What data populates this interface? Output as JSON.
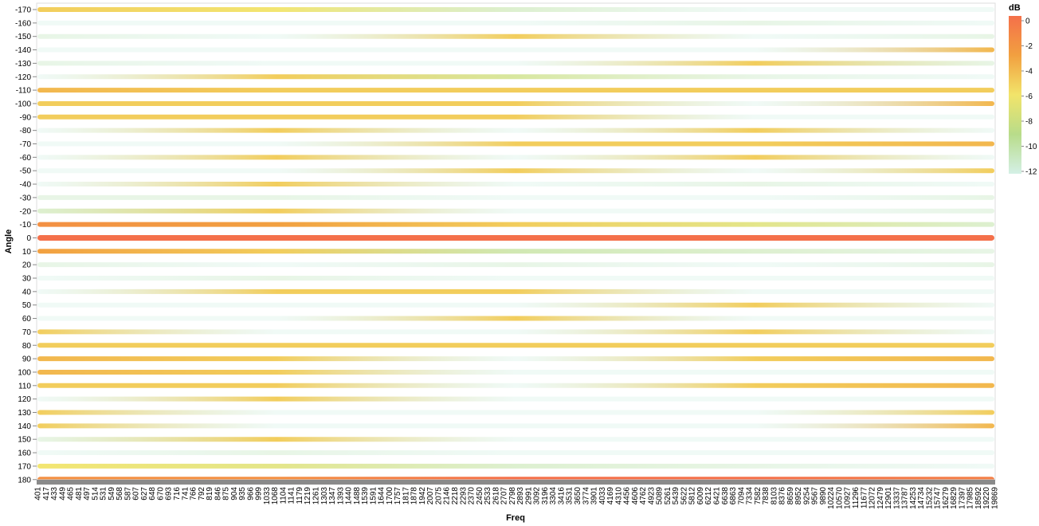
{
  "chart_data": {
    "type": "heatmap",
    "title": "",
    "xlabel": "Freq",
    "ylabel": "Angle",
    "x_tick_labels": [
      "401",
      "417",
      "433",
      "449",
      "465",
      "481",
      "497",
      "514",
      "531",
      "549",
      "568",
      "587",
      "607",
      "627",
      "648",
      "670",
      "693",
      "716",
      "741",
      "766",
      "792",
      "819",
      "846",
      "875",
      "904",
      "935",
      "966",
      "999",
      "1033",
      "1068",
      "1104",
      "1141",
      "1179",
      "1219",
      "1261",
      "1303",
      "1347",
      "1393",
      "1440",
      "1488",
      "1539",
      "1591",
      "1644",
      "1700",
      "1757",
      "1817",
      "1878",
      "1942",
      "2007",
      "2075",
      "2146",
      "2218",
      "2293",
      "2370",
      "2450",
      "2533",
      "2618",
      "2707",
      "2798",
      "2893",
      "2991",
      "3092",
      "3196",
      "3304",
      "3416",
      "3531",
      "3650",
      "3774",
      "3901",
      "4033",
      "4169",
      "4310",
      "4456",
      "4606",
      "4762",
      "4923",
      "5089",
      "5261",
      "5439",
      "5622",
      "5812",
      "6009",
      "6212",
      "6421",
      "6638",
      "6863",
      "7094",
      "7334",
      "7582",
      "7838",
      "8103",
      "8376",
      "8659",
      "8952",
      "9254",
      "9567",
      "9890",
      "10224",
      "10570",
      "10927",
      "11296",
      "11677",
      "12072",
      "12479",
      "12901",
      "13337",
      "13787",
      "14253",
      "14734",
      "15232",
      "15747",
      "16279",
      "16829",
      "17397",
      "17985",
      "18592",
      "19220",
      "19869"
    ],
    "angles": [
      -170,
      -160,
      -150,
      -140,
      -130,
      -120,
      -110,
      -100,
      -90,
      -80,
      -70,
      -60,
      -50,
      -40,
      -30,
      -20,
      -10,
      0,
      10,
      20,
      30,
      40,
      50,
      60,
      70,
      80,
      90,
      100,
      110,
      120,
      130,
      140,
      150,
      160,
      170,
      180
    ],
    "rows": [
      {
        "angle": -170,
        "db": [
          -5,
          -6,
          -10,
          -12,
          -12
        ]
      },
      {
        "angle": -160,
        "db": [
          -12,
          -12,
          -12,
          -11,
          -12
        ]
      },
      {
        "angle": -150,
        "db": [
          -11,
          -12,
          -5,
          -12,
          -11
        ]
      },
      {
        "angle": -140,
        "db": [
          -12,
          -12,
          -12,
          -12,
          -4
        ]
      },
      {
        "angle": -130,
        "db": [
          -11,
          -12,
          -12,
          -5,
          -11
        ]
      },
      {
        "angle": -120,
        "db": [
          -12,
          -5,
          -8,
          -11,
          -12
        ]
      },
      {
        "angle": -110,
        "db": [
          -4,
          -5,
          -5,
          -5,
          -5
        ]
      },
      {
        "angle": -100,
        "db": [
          -5,
          -5,
          -5,
          -12,
          -4
        ]
      },
      {
        "angle": -90,
        "db": [
          -5,
          -5,
          -5,
          -12,
          -12
        ]
      },
      {
        "angle": -80,
        "db": [
          -12,
          -5,
          -12,
          -5,
          -12
        ]
      },
      {
        "angle": -70,
        "db": [
          -12,
          -12,
          -5,
          -5,
          -4
        ]
      },
      {
        "angle": -60,
        "db": [
          -12,
          -5,
          -12,
          -5,
          -12
        ]
      },
      {
        "angle": -50,
        "db": [
          -12,
          -12,
          -5,
          -12,
          -5
        ]
      },
      {
        "angle": -40,
        "db": [
          -12,
          -5,
          -12,
          -11,
          -12
        ]
      },
      {
        "angle": -30,
        "db": [
          -11,
          -11,
          -12,
          -12,
          -11
        ]
      },
      {
        "angle": -20,
        "db": [
          -10,
          -5,
          -12,
          -12,
          -11
        ]
      },
      {
        "angle": -10,
        "db": [
          -2,
          -3,
          -5,
          -7,
          -10
        ]
      },
      {
        "angle": 0,
        "db": [
          0,
          0,
          0,
          0,
          0
        ]
      },
      {
        "angle": 10,
        "db": [
          -3,
          -5,
          -9,
          -10,
          -11
        ]
      },
      {
        "angle": 20,
        "db": [
          -11,
          -12,
          -11,
          -12,
          -11
        ]
      },
      {
        "angle": 30,
        "db": [
          -12,
          -11,
          -12,
          -12,
          -12
        ]
      },
      {
        "angle": 40,
        "db": [
          -12,
          -5,
          -5,
          -12,
          -12
        ]
      },
      {
        "angle": 50,
        "db": [
          -12,
          -12,
          -12,
          -5,
          -12
        ]
      },
      {
        "angle": 60,
        "db": [
          -12,
          -12,
          -5,
          -12,
          -12
        ]
      },
      {
        "angle": 70,
        "db": [
          -5,
          -12,
          -12,
          -5,
          -12
        ]
      },
      {
        "angle": 80,
        "db": [
          -5,
          -5,
          -5,
          -5,
          -5
        ]
      },
      {
        "angle": 90,
        "db": [
          -4,
          -5,
          -12,
          -5,
          -4
        ]
      },
      {
        "angle": 100,
        "db": [
          -4,
          -5,
          -12,
          -12,
          -12
        ]
      },
      {
        "angle": 110,
        "db": [
          -5,
          -5,
          -12,
          -5,
          -4
        ]
      },
      {
        "angle": 120,
        "db": [
          -12,
          -5,
          -12,
          -12,
          -12
        ]
      },
      {
        "angle": 130,
        "db": [
          -5,
          -12,
          -12,
          -12,
          -5
        ]
      },
      {
        "angle": 140,
        "db": [
          -5,
          -12,
          -12,
          -12,
          -4
        ]
      },
      {
        "angle": 150,
        "db": [
          -11,
          -5,
          -12,
          -12,
          -12
        ]
      },
      {
        "angle": 160,
        "db": [
          -12,
          -11,
          -12,
          -12,
          -12
        ]
      },
      {
        "angle": 170,
        "db": [
          -6,
          -7,
          -10,
          -11,
          -12
        ]
      },
      {
        "angle": 180,
        "db": [
          -2,
          -2,
          0,
          0,
          -1
        ]
      }
    ],
    "color_scale": {
      "title": "dB",
      "domain": [
        -12,
        0
      ],
      "ticks": [
        0,
        -2,
        -4,
        -6,
        -8,
        -10,
        -12
      ],
      "stops": [
        "#d4f0e6",
        "#b8dc8a",
        "#f2e46a",
        "#f2a040",
        "#f4704a"
      ]
    },
    "legend_position": "top-right",
    "grid": false
  }
}
